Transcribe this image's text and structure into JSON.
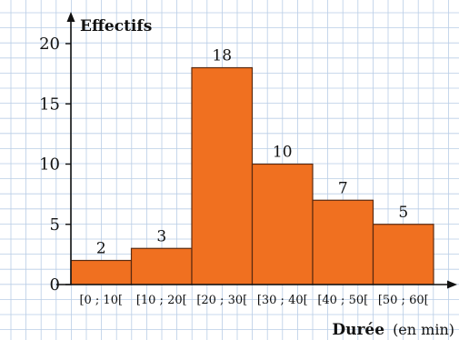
{
  "chart_data": {
    "type": "bar",
    "categories": [
      "[0 ; 10[",
      "[10 ; 20[",
      "[20 ; 30[",
      "[30 ; 40[",
      "[40 ; 50[",
      "[50 ; 60["
    ],
    "values": [
      2,
      3,
      18,
      10,
      7,
      5
    ],
    "data_labels": [
      "2",
      "3",
      "18",
      "10",
      "7",
      "5"
    ],
    "ylabel": "Effectifs",
    "xlabel": {
      "main": "Durée",
      "unit": "(en min)"
    },
    "ylim": [
      0,
      20
    ],
    "yticks": [
      "0",
      "5",
      "10",
      "15",
      "20"
    ],
    "grid": true,
    "bar_color": "#f07020",
    "bar_edge_color": "#5a2a10",
    "grid_color": "#b9cde6"
  }
}
